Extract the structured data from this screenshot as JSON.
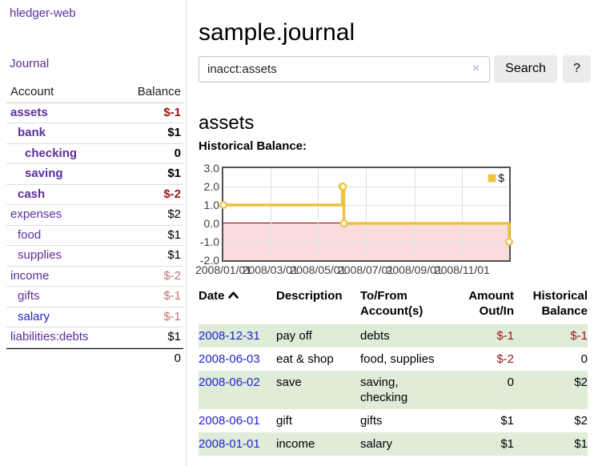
{
  "colors": {
    "link_purple": "#5c2d9e",
    "link_blue": "#2222d3",
    "negative_strong": "#9e1515",
    "negative_soft": "#bf7474",
    "row_stripe_green": "#deecd8",
    "button_gray": "#ebebeb",
    "series_gold": "#edc240"
  },
  "sidebar": {
    "app_title": "hledger-web",
    "nav_journal": "Journal",
    "accounts_table": {
      "headers": [
        "Account",
        "Balance"
      ],
      "rows": [
        {
          "name": "assets",
          "indent": 0,
          "bold": true,
          "link_color": "purple",
          "balance": "$-1",
          "tone": "neg-strong"
        },
        {
          "name": "bank",
          "indent": 1,
          "bold": true,
          "link_color": "purple",
          "balance": "$1",
          "tone": "plain"
        },
        {
          "name": "checking",
          "indent": 2,
          "bold": true,
          "link_color": "purple",
          "balance": "0",
          "tone": "plain"
        },
        {
          "name": "saving",
          "indent": 2,
          "bold": true,
          "link_color": "purple",
          "balance": "$1",
          "tone": "plain"
        },
        {
          "name": "cash",
          "indent": 1,
          "bold": true,
          "link_color": "purple",
          "balance": "$-2",
          "tone": "neg-strong"
        },
        {
          "name": "expenses",
          "indent": 0,
          "bold": false,
          "link_color": "purple",
          "balance": "$2",
          "tone": "plain"
        },
        {
          "name": "food",
          "indent": 1,
          "bold": false,
          "link_color": "purple",
          "balance": "$1",
          "tone": "plain"
        },
        {
          "name": "supplies",
          "indent": 1,
          "bold": false,
          "link_color": "purple",
          "balance": "$1",
          "tone": "plain"
        },
        {
          "name": "income",
          "indent": 0,
          "bold": false,
          "link_color": "purple",
          "balance": "$-2",
          "tone": "neg-soft"
        },
        {
          "name": "gifts",
          "indent": 1,
          "bold": false,
          "link_color": "purple",
          "balance": "$-1",
          "tone": "neg-soft"
        },
        {
          "name": "salary",
          "indent": 1,
          "bold": false,
          "link_color": "blue",
          "balance": "$-1",
          "tone": "neg-soft"
        },
        {
          "name": "liabilities:debts",
          "indent": 0,
          "bold": false,
          "link_color": "purple",
          "balance": "$1",
          "tone": "plain"
        }
      ],
      "total": "0"
    }
  },
  "header": {
    "title": "sample.journal"
  },
  "search": {
    "value": "inacct:assets",
    "clear_icon": "×",
    "search_label": "Search",
    "help_label": "?"
  },
  "account_page": {
    "heading": "assets",
    "chart_label": "Historical Balance:"
  },
  "chart_data": {
    "type": "line",
    "title": "Historical Balance",
    "step": true,
    "series": [
      {
        "name": "$",
        "color": "#edc240",
        "points": [
          [
            "2008-01-01",
            1
          ],
          [
            "2008-06-01",
            2
          ],
          [
            "2008-06-02",
            2
          ],
          [
            "2008-06-03",
            0
          ],
          [
            "2008-12-31",
            -1
          ]
        ]
      }
    ],
    "xlim": [
      "2008-01-01",
      "2008-12-31"
    ],
    "ylim": [
      -2,
      3
    ],
    "yticks": [
      3.0,
      2.0,
      1.0,
      0.0,
      -1.0,
      -2.0
    ],
    "xticks": [
      "2008/01/01",
      "2008/03/01",
      "2008/05/01",
      "2008/07/01",
      "2008/09/01",
      "2008/11/01"
    ],
    "legend": {
      "position": "top-right",
      "entries": [
        {
          "label": "$",
          "color": "#edc240"
        }
      ]
    },
    "grid": true,
    "negative_region_fill": "#fbdcdc",
    "zero_line_color": "#8b0000"
  },
  "table": {
    "headers": [
      "Date",
      "Description",
      "To/From Account(s)",
      "Amount Out/In",
      "Historical Balance"
    ],
    "sort": {
      "column": "Date",
      "direction": "asc"
    },
    "rows": [
      {
        "date": "2008-12-31",
        "description": "pay off",
        "accounts": "debts",
        "amount": "$-1",
        "balance": "$-1"
      },
      {
        "date": "2008-06-03",
        "description": "eat & shop",
        "accounts": "food, supplies",
        "amount": "$-2",
        "balance": "0"
      },
      {
        "date": "2008-06-02",
        "description": "save",
        "accounts": "saving, checking",
        "amount": "0",
        "balance": "$2"
      },
      {
        "date": "2008-06-01",
        "description": "gift",
        "accounts": "gifts",
        "amount": "$1",
        "balance": "$2"
      },
      {
        "date": "2008-01-01",
        "description": "income",
        "accounts": "salary",
        "amount": "$1",
        "balance": "$1"
      }
    ]
  }
}
